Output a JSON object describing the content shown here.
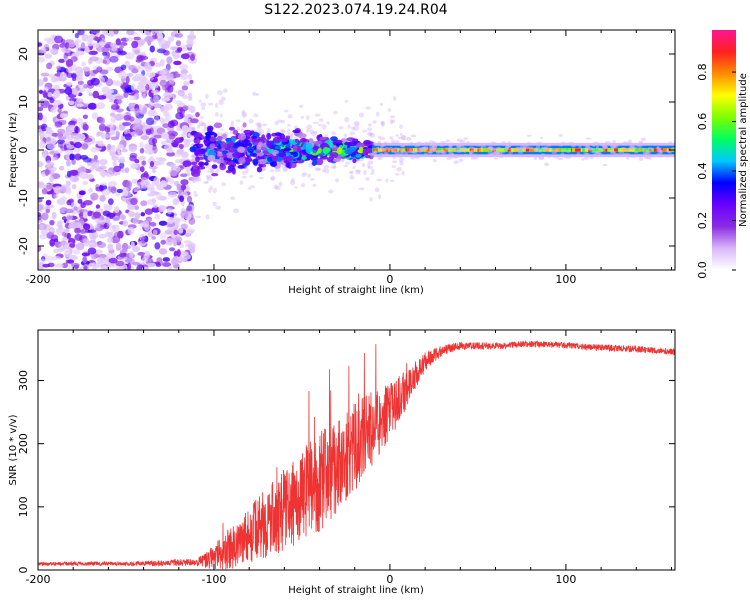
{
  "title": "S122.2023.074.19.24.R04",
  "chart_data": [
    {
      "type": "heatmap",
      "name": "spectrogram",
      "xlabel": "Height of straight line (km)",
      "ylabel": "Frequency (Hz)",
      "xlim": [
        -200,
        162
      ],
      "ylim": [
        -25,
        25
      ],
      "x_ticks": [
        -200,
        -100,
        0,
        100
      ],
      "y_ticks": [
        -20,
        -10,
        0,
        10,
        20
      ],
      "colorbar": {
        "label": "Normalized spectral amplitude",
        "range": [
          0,
          0.97
        ],
        "ticks": [
          "0.0",
          "0.2",
          "0.4",
          "0.6",
          "0.8"
        ],
        "colors": [
          "#ffffff",
          "#d8b8f8",
          "#8a2be2",
          "#6a00ff",
          "#0000ff",
          "#00c8ff",
          "#00ff60",
          "#7fff00",
          "#ffff00",
          "#ff8c00",
          "#ff2020",
          "#ff1493"
        ]
      },
      "regions": [
        {
          "x_range": [
            -200,
            -112
          ],
          "f_spread": 25,
          "typical_amplitude": 0.05,
          "description": "noise"
        },
        {
          "x_range": [
            -112,
            -10
          ],
          "f_spread": 6,
          "typical_amplitude": 0.3,
          "description": "emerging signal"
        },
        {
          "x_range": [
            -10,
            162
          ],
          "f_spread": 1.5,
          "typical_amplitude": 0.5,
          "peak_amplitude": 0.95,
          "description": "carrier line at 0 Hz"
        }
      ]
    },
    {
      "type": "line",
      "name": "snr",
      "xlabel": "Height of straight line (km)",
      "ylabel": "SNR (10 * v/v)",
      "xlim": [
        -200,
        162
      ],
      "ylim": [
        0,
        380
      ],
      "x_ticks": [
        -200,
        -100,
        0,
        100
      ],
      "y_ticks": [
        0,
        100,
        200,
        300
      ],
      "color": "#ee3333",
      "series": [
        {
          "name": "SNR",
          "x": [
            -200,
            -150,
            -110,
            -100,
            -90,
            -80,
            -70,
            -60,
            -50,
            -40,
            -30,
            -20,
            -10,
            0,
            10,
            20,
            30,
            40,
            60,
            80,
            100,
            120,
            140,
            162
          ],
          "values": [
            10,
            10,
            12,
            20,
            35,
            55,
            75,
            95,
            115,
            140,
            165,
            195,
            225,
            250,
            290,
            330,
            348,
            355,
            355,
            358,
            356,
            352,
            350,
            345
          ],
          "noise_amplitude": [
            3,
            3,
            6,
            20,
            35,
            45,
            55,
            65,
            70,
            80,
            75,
            70,
            60,
            45,
            30,
            15,
            8,
            6,
            5,
            5,
            5,
            5,
            5,
            5
          ]
        }
      ]
    }
  ]
}
